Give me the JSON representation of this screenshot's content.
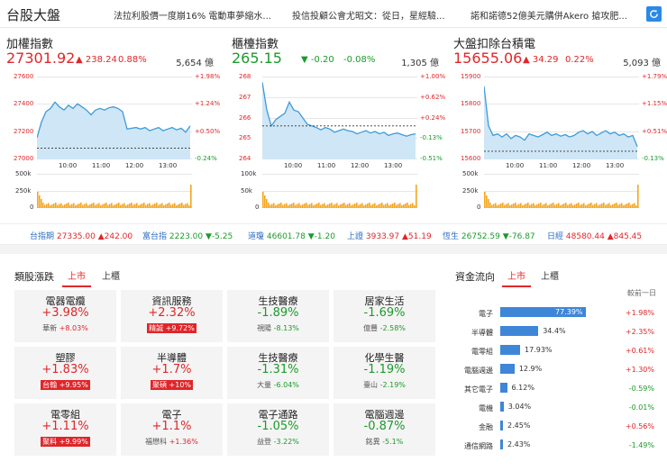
{
  "header": {
    "title": "台股大盤",
    "news": [
      "法拉利股價一度崩16% 電動車夢縮水...",
      "投信投顧公會尤昭文：從日，星經驗...",
      "諾和諾德52億美元購併Akero 搶攻肥..."
    ]
  },
  "indices": [
    {
      "name": "加權指數",
      "price": "27301.92",
      "change": "238.24",
      "pct": "0.88%",
      "dir": "up",
      "volume": "5,654 億",
      "left_axis": [
        "27600",
        "27400",
        "27200",
        "27000"
      ],
      "right_axis": [
        "+1.98%",
        "+1.24%",
        "+0.50%",
        "-0.24%"
      ],
      "times": [
        "10:00",
        "11:00",
        "12:00",
        "13:00"
      ],
      "vol_axis": [
        "500k",
        "250k",
        "0"
      ]
    },
    {
      "name": "櫃檯指數",
      "price": "265.15",
      "change": "-0.20",
      "pct": "-0.08%",
      "dir": "down",
      "volume": "1,305 億",
      "left_axis": [
        "268",
        "267",
        "266",
        "265",
        "264"
      ],
      "right_axis": [
        "+1.00%",
        "+0.62%",
        "+0.24%",
        "-0.13%",
        "-0.51%"
      ],
      "times": [
        "10:00",
        "11:00",
        "12:00",
        "13:00"
      ],
      "vol_axis": [
        "100k",
        "50k",
        "0"
      ]
    },
    {
      "name": "大盤扣除台積電",
      "price": "15655.06",
      "change": "34.29",
      "pct": "0.22%",
      "dir": "up",
      "volume": "5,093 億",
      "left_axis": [
        "15900",
        "15800",
        "15700",
        "15600"
      ],
      "right_axis": [
        "+1.79%",
        "+1.15%",
        "+0.51%",
        "-0.13%"
      ],
      "times": [
        "10:00",
        "11:00",
        "12:00",
        "13:00"
      ],
      "vol_axis": [
        "500k",
        "250k",
        "0"
      ]
    }
  ],
  "ticker": [
    {
      "label": "台指期",
      "value": "27335.00",
      "change": "▲242.00",
      "dir": "up"
    },
    {
      "label": "富台指",
      "value": "2223.00",
      "change": "▼-5.25",
      "dir": "down"
    },
    {
      "label": "道瓊",
      "value": "46601.78",
      "change": "▼-1.20",
      "dir": "down"
    },
    {
      "label": "上證",
      "value": "3933.97",
      "change": "▲51.19",
      "dir": "up"
    },
    {
      "label": "恆生",
      "value": "26752.59",
      "change": "▼-76.87",
      "dir": "down"
    },
    {
      "label": "日經",
      "value": "48580.44",
      "change": "▲845.45",
      "dir": "up"
    }
  ],
  "sectors": {
    "title": "類股漲跌",
    "tabs": [
      "上市",
      "上櫃"
    ],
    "cards": [
      {
        "name": "電器電纜",
        "pct": "+3.98%",
        "dir": "up",
        "stock": "華新",
        "stock_pct": "+8.03%",
        "hl": false
      },
      {
        "name": "資訊服務",
        "pct": "+2.32%",
        "dir": "up",
        "stock": "精誠",
        "stock_pct": "+9.72%",
        "hl": true
      },
      {
        "name": "生技醫療",
        "pct": "-1.89%",
        "dir": "down",
        "stock": "視陽",
        "stock_pct": "-8.13%",
        "hl": false
      },
      {
        "name": "居家生活",
        "pct": "-1.69%",
        "dir": "down",
        "stock": "億豐",
        "stock_pct": "-2.58%",
        "hl": false
      },
      {
        "name": "塑膠",
        "pct": "+1.83%",
        "dir": "up",
        "stock": "台翰",
        "stock_pct": "+9.95%",
        "hl": true
      },
      {
        "name": "半導體",
        "pct": "+1.7%",
        "dir": "up",
        "stock": "聚碩",
        "stock_pct": "+10%",
        "hl": true
      },
      {
        "name": "生技醫療",
        "pct": "-1.31%",
        "dir": "down",
        "stock": "大量",
        "stock_pct": "-6.04%",
        "hl": false
      },
      {
        "name": "化學生醫",
        "pct": "-1.19%",
        "dir": "down",
        "stock": "臺山",
        "stock_pct": "-2.19%",
        "hl": false
      },
      {
        "name": "電零組",
        "pct": "+1.11%",
        "dir": "up",
        "stock": "聚料",
        "stock_pct": "+9.99%",
        "hl": true
      },
      {
        "name": "電子",
        "pct": "+1.1%",
        "dir": "up",
        "stock": "福懋科",
        "stock_pct": "+1.36%",
        "hl": false
      },
      {
        "name": "電子通路",
        "pct": "-1.05%",
        "dir": "down",
        "stock": "益登",
        "stock_pct": "-3.22%",
        "hl": false
      },
      {
        "name": "電腦週邊",
        "pct": "-0.87%",
        "dir": "down",
        "stock": "銘異",
        "stock_pct": "-5.1%",
        "hl": false
      }
    ]
  },
  "flow": {
    "title": "資金流向",
    "tabs": [
      "上市",
      "上櫃"
    ],
    "col_label": "較前一日",
    "rows": [
      {
        "name": "電子",
        "value": "77.39%",
        "frac": 0.7739,
        "change": "+1.98%",
        "dir": "up"
      },
      {
        "name": "半導體",
        "value": "34.4%",
        "frac": 0.344,
        "change": "+2.35%",
        "dir": "up"
      },
      {
        "name": "電零組",
        "value": "17.93%",
        "frac": 0.1793,
        "change": "+0.61%",
        "dir": "up"
      },
      {
        "name": "電腦週邊",
        "value": "12.9%",
        "frac": 0.129,
        "change": "+1.30%",
        "dir": "up"
      },
      {
        "name": "其它電子",
        "value": "6.12%",
        "frac": 0.0612,
        "change": "-0.59%",
        "dir": "down"
      },
      {
        "name": "電機",
        "value": "3.04%",
        "frac": 0.0304,
        "change": "-0.01%",
        "dir": "down"
      },
      {
        "name": "金融",
        "value": "2.45%",
        "frac": 0.0245,
        "change": "+0.56%",
        "dir": "up"
      },
      {
        "name": "通信網路",
        "value": "2.43%",
        "frac": 0.0243,
        "change": "-1.49%",
        "dir": "down"
      }
    ]
  },
  "colors": {
    "up": "#e0262a",
    "down": "#1c9a2c",
    "line": "#3e9bd6",
    "area": "#cfe6f6",
    "volume": "#f5a623",
    "accent": "#2b89e6"
  }
}
